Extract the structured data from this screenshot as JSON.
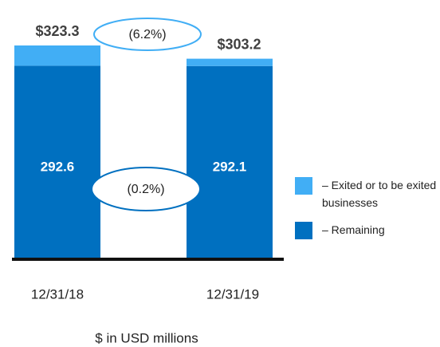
{
  "chart_data": {
    "type": "stacked_bar",
    "subtitle": "$ in USD millions",
    "categories": [
      "12/31/18",
      "12/31/19"
    ],
    "series": [
      {
        "name": "– Remaining",
        "color": "#0070c0",
        "values": [
          292.6,
          292.1
        ]
      },
      {
        "name": "– Exited or to be exited businesses",
        "color": "#41aef5",
        "values": [
          30.7,
          11.1
        ]
      }
    ],
    "total_labels": [
      "$323.3",
      "$303.2"
    ],
    "annotations": [
      "(6.2%)",
      "(0.2%)"
    ],
    "ylim": [
      0,
      323.3
    ]
  }
}
